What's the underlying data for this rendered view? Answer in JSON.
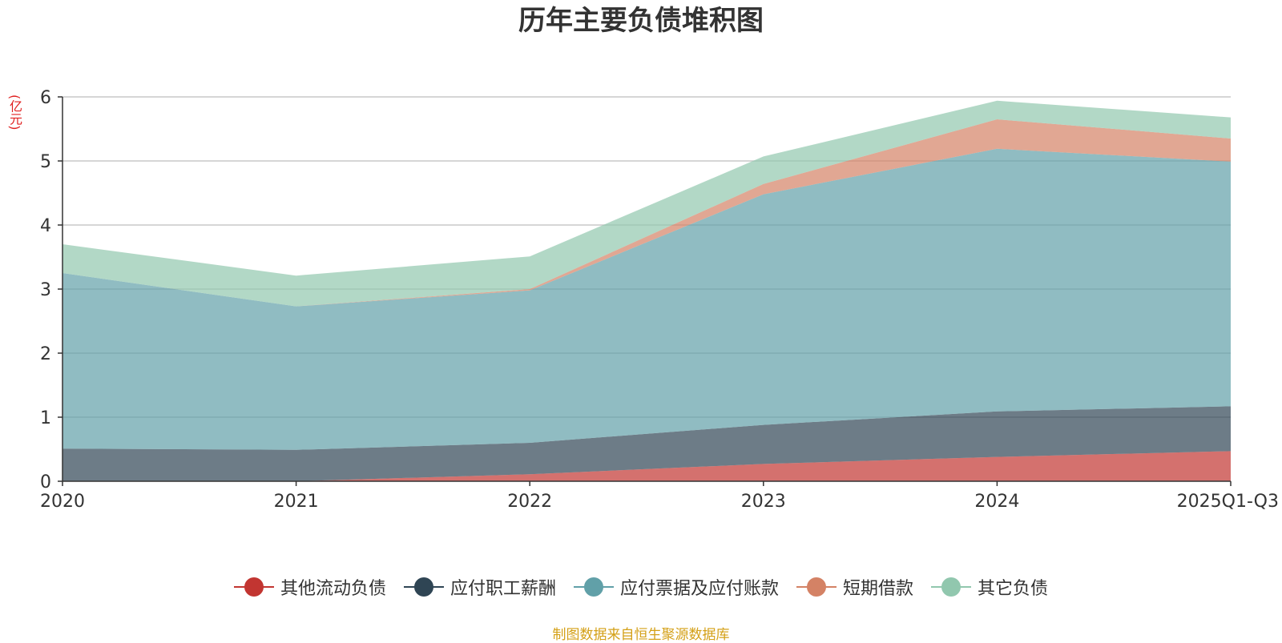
{
  "chart_data": {
    "type": "area",
    "stacked": true,
    "title": "历年主要负债堆积图",
    "unit_label": "(亿元)",
    "categories": [
      "2020",
      "2021",
      "2022",
      "2023",
      "2024",
      "2025Q1-Q3"
    ],
    "ylim": [
      0,
      6
    ],
    "yticks": [
      0,
      1,
      2,
      3,
      4,
      5,
      6
    ],
    "grid": true,
    "legend_position": "bottom",
    "series": [
      {
        "name": "其他流动负债",
        "color": "#c23531",
        "values": [
          0,
          0,
          0.11,
          0.27,
          0.38,
          0.47
        ]
      },
      {
        "name": "应付职工薪酬",
        "color": "#2f4554",
        "values": [
          0.51,
          0.49,
          0.49,
          0.61,
          0.71,
          0.7
        ]
      },
      {
        "name": "应付票据及应付账款",
        "color": "#61a0a8",
        "values": [
          2.74,
          2.24,
          2.38,
          3.6,
          4.1,
          3.82
        ]
      },
      {
        "name": "短期借款",
        "color": "#d48265",
        "values": [
          0,
          0,
          0.02,
          0.16,
          0.46,
          0.36
        ]
      },
      {
        "name": "其它负债",
        "color": "#91c7ae",
        "values": [
          0.45,
          0.48,
          0.51,
          0.43,
          0.29,
          0.33
        ]
      }
    ],
    "source": "制图数据来自恒生聚源数据库"
  }
}
